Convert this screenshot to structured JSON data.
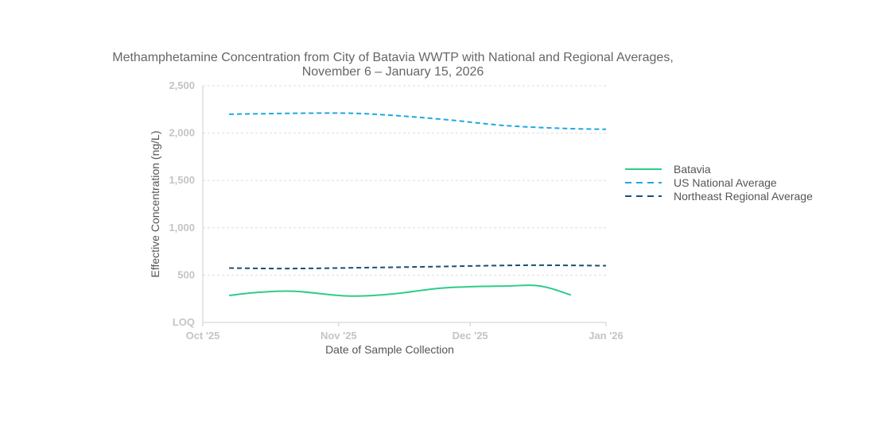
{
  "chart_data": {
    "type": "line",
    "title": [
      "Methamphetamine Concentration from City of Batavia WWTP with National and Regional Averages,",
      "November 6 – January 15, 2026"
    ],
    "xlabel": "Date of Sample Collection",
    "ylabel": "Effective Concentration (ng/L)",
    "x_ticks": [
      "Oct '25",
      "Nov '25",
      "Dec '25",
      "Jan '26"
    ],
    "x_tick_dates": [
      "2025-10-01",
      "2025-11-01",
      "2025-12-01",
      "2026-01-01"
    ],
    "y_ticks": [
      0,
      500,
      1000,
      1500,
      2000,
      2500
    ],
    "y_tick_labels": [
      "LOQ",
      "500",
      "1,000",
      "1,500",
      "2,000",
      "2,500"
    ],
    "ylim": [
      0,
      2500
    ],
    "grid": true,
    "legend_position": "right",
    "series": [
      {
        "name": "Batavia",
        "color": "#2ecc8a",
        "dash": "solid",
        "x": [
          "2025-10-07",
          "2025-10-14",
          "2025-10-22",
          "2025-11-03",
          "2025-11-13",
          "2025-11-25",
          "2025-12-09",
          "2025-12-17",
          "2025-12-24"
        ],
        "y": [
          285,
          320,
          330,
          280,
          300,
          365,
          385,
          385,
          290
        ]
      },
      {
        "name": "US National Average",
        "color": "#1ea7e4",
        "dash": "dashed",
        "x": [
          "2025-10-07",
          "2025-10-23",
          "2025-11-04",
          "2025-11-14",
          "2025-11-26",
          "2025-12-09",
          "2025-12-22",
          "2026-01-01"
        ],
        "y": [
          2200,
          2210,
          2210,
          2185,
          2140,
          2080,
          2050,
          2040
        ]
      },
      {
        "name": "Northeast Regional Average",
        "color": "#1b4f72",
        "dash": "dashed",
        "x": [
          "2025-10-07",
          "2025-10-21",
          "2025-11-08",
          "2025-11-23",
          "2025-12-05",
          "2025-12-16",
          "2026-01-01"
        ],
        "y": [
          575,
          570,
          580,
          590,
          600,
          605,
          600
        ]
      }
    ]
  }
}
